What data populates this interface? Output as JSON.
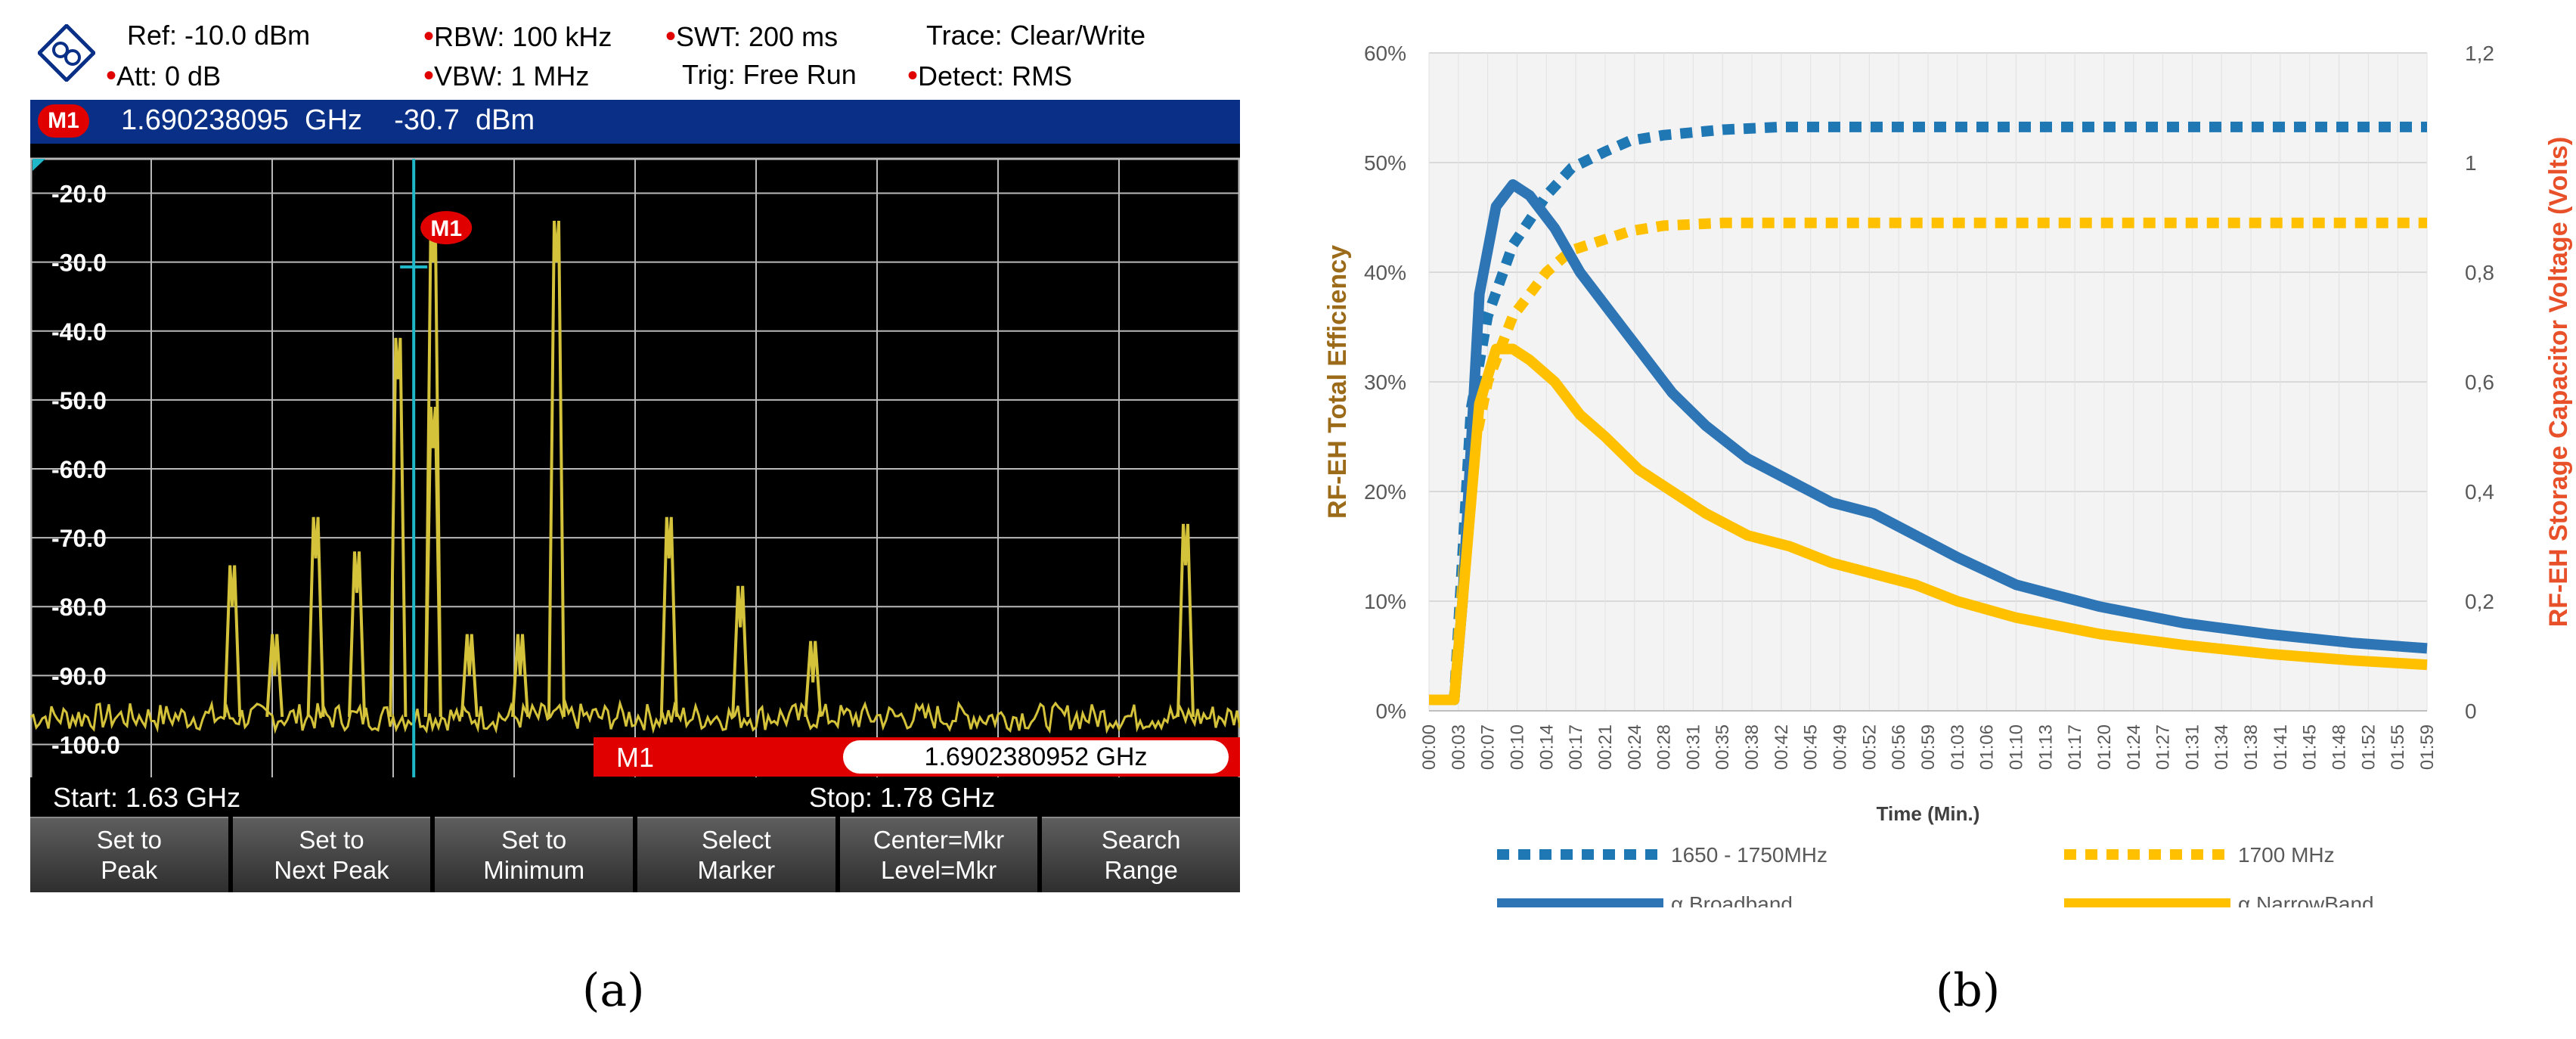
{
  "analyzer": {
    "ref": "Ref:  -10.0 dBm",
    "att": "Att:  0 dB",
    "rbw": "RBW:  100 kHz",
    "vbw": "VBW:  1 MHz",
    "swt": "SWT:  200 ms",
    "trig": "Trig:  Free Run",
    "trace": "Trace:  Clear/Write",
    "detect": "Detect:  RMS",
    "marker_badge": "M1",
    "marker_freq": "1.690238095  GHz",
    "marker_level": "-30.7  dBm",
    "plot_marker": "M1",
    "y_ticks": [
      "-20.0",
      "-30.0",
      "-40.0",
      "-50.0",
      "-60.0",
      "-70.0",
      "-80.0",
      "-90.0",
      "-100.0"
    ],
    "search_label": "M1",
    "search_value": "1.6902380952 GHz",
    "start": "Start:  1.63 GHz",
    "stop": "Stop: 1.78 GHz",
    "softkeys": [
      {
        "line1": "Set to",
        "line2": "Peak"
      },
      {
        "line1": "Set to",
        "line2": "Next Peak"
      },
      {
        "line1": "Set to",
        "line2": "Minimum"
      },
      {
        "line1": "Select",
        "line2": "Marker"
      },
      {
        "line1": "Center=Mkr",
        "line2": "Level=Mkr"
      },
      {
        "line1": "Search",
        "line2": "Range"
      }
    ],
    "colors": {
      "trace": "#d4c23a",
      "marker_line": "#20b8c8",
      "grid": "#b9b9b9",
      "header_bar": "#0a2f86",
      "accent": "#e00000"
    },
    "peaks": [
      {
        "pos": 0.333,
        "level": -30
      },
      {
        "pos": 0.435,
        "level": -30
      },
      {
        "pos": 0.304,
        "level": -47
      },
      {
        "pos": 0.333,
        "level": -57
      },
      {
        "pos": 0.528,
        "level": -73
      },
      {
        "pos": 0.236,
        "level": -73
      },
      {
        "pos": 0.587,
        "level": -83
      },
      {
        "pos": 0.955,
        "level": -74
      },
      {
        "pos": 0.27,
        "level": -78
      },
      {
        "pos": 0.167,
        "level": -80
      },
      {
        "pos": 0.647,
        "level": -91
      },
      {
        "pos": 0.202,
        "level": -90
      },
      {
        "pos": 0.363,
        "level": -90
      },
      {
        "pos": 0.405,
        "level": -90
      }
    ]
  },
  "chart_data": {
    "type": "line",
    "xlabel": "Time (Min.)",
    "ylabel_left": "RF-EH Total Efficiency",
    "ylabel_right": "RF-EH Storage Capacitor Voltage (Volts)",
    "y_left_ticks": [
      "0%",
      "10%",
      "20%",
      "30%",
      "40%",
      "50%",
      "60%"
    ],
    "y_right_ticks": [
      "0",
      "0,2",
      "0,4",
      "0,6",
      "0,8",
      "1",
      "1,2"
    ],
    "ylim_left": [
      0,
      60
    ],
    "ylim_right": [
      0,
      1.2
    ],
    "x_ticks": [
      "00:00",
      "00:03",
      "00:07",
      "00:10",
      "00:14",
      "00:17",
      "00:21",
      "00:24",
      "00:28",
      "00:31",
      "00:35",
      "00:38",
      "00:42",
      "00:45",
      "00:49",
      "00:52",
      "00:56",
      "00:59",
      "01:03",
      "01:06",
      "01:10",
      "01:13",
      "01:17",
      "01:20",
      "01:24",
      "01:27",
      "01:31",
      "01:34",
      "01:38",
      "01:41",
      "01:45",
      "01:48",
      "01:52",
      "01:55",
      "01:59"
    ],
    "grid": true,
    "legend_position": "bottom",
    "series": [
      {
        "name": "1650 - 1750MHz",
        "axis": "right",
        "style": "dotted",
        "color": "#1f77b4",
        "x": [
          0,
          3,
          5,
          7,
          10,
          14,
          17,
          21,
          24,
          28,
          35,
          42,
          49,
          56,
          63,
          70,
          80,
          90,
          100,
          110,
          119
        ],
        "y": [
          0.02,
          0.02,
          0.55,
          0.72,
          0.85,
          0.94,
          0.99,
          1.02,
          1.04,
          1.05,
          1.06,
          1.065,
          1.065,
          1.065,
          1.065,
          1.065,
          1.065,
          1.065,
          1.065,
          1.065,
          1.065
        ]
      },
      {
        "name": "1700 MHz",
        "axis": "right",
        "style": "dotted",
        "color": "#ffc000",
        "x": [
          0,
          3,
          5,
          7,
          10,
          14,
          17,
          21,
          24,
          28,
          35,
          42,
          49,
          56,
          63,
          70,
          80,
          90,
          100,
          110,
          119
        ],
        "y": [
          0.02,
          0.02,
          0.45,
          0.6,
          0.72,
          0.8,
          0.84,
          0.86,
          0.875,
          0.885,
          0.89,
          0.89,
          0.89,
          0.89,
          0.89,
          0.89,
          0.89,
          0.89,
          0.89,
          0.89,
          0.89
        ]
      },
      {
        "name": "α Broadband",
        "axis": "left",
        "style": "solid",
        "color": "#2e75b6",
        "x": [
          0,
          3,
          4,
          6,
          8,
          10,
          12,
          15,
          18,
          21,
          25,
          29,
          33,
          38,
          43,
          48,
          53,
          58,
          63,
          70,
          80,
          90,
          100,
          110,
          119
        ],
        "y": [
          1,
          1,
          10,
          38,
          46,
          48,
          47,
          44,
          40,
          37,
          33,
          29,
          26,
          23,
          21,
          19,
          18,
          16,
          14,
          11.5,
          9.5,
          8,
          7,
          6.2,
          5.7
        ]
      },
      {
        "name": "α NarrowBand",
        "axis": "left",
        "style": "solid",
        "color": "#ffc000",
        "x": [
          0,
          3,
          4,
          6,
          8,
          10,
          12,
          15,
          18,
          21,
          25,
          29,
          33,
          38,
          43,
          48,
          53,
          58,
          63,
          70,
          80,
          90,
          100,
          110,
          119
        ],
        "y": [
          1,
          1,
          10,
          28,
          33,
          33,
          32,
          30,
          27,
          25,
          22,
          20,
          18,
          16,
          15,
          13.5,
          12.5,
          11.5,
          10,
          8.5,
          7,
          6,
          5.2,
          4.6,
          4.2
        ]
      }
    ]
  },
  "captions": {
    "a": "(a)",
    "b": "(b)"
  }
}
